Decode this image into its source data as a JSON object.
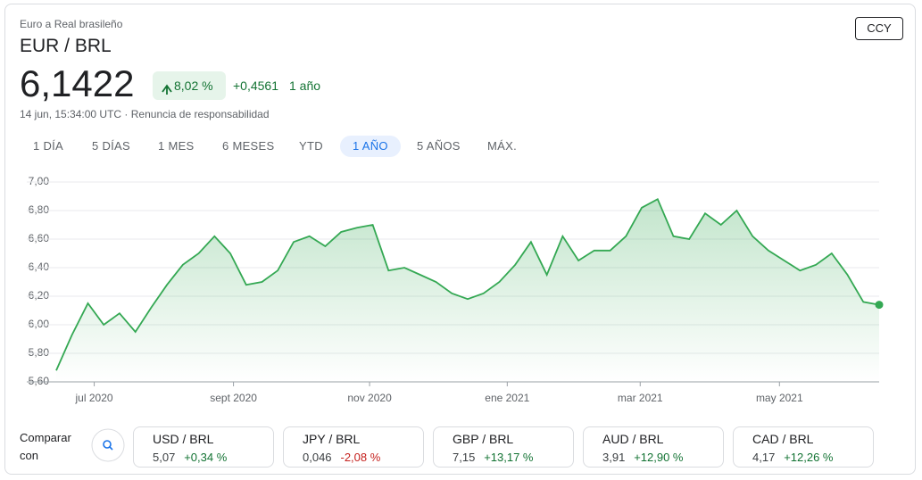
{
  "header": {
    "subtitle": "Euro a Real brasileño",
    "pair": "EUR / BRL",
    "price": "6,1422",
    "change_pct": "8,02 %",
    "change_abs": "+0,4561",
    "period": "1 año",
    "timestamp": "14 jun, 15:34:00 UTC",
    "disclaimer": "Renuncia de responsabilidad",
    "button": "CCY"
  },
  "tabs": {
    "labels": [
      "1 DÍA",
      "5 DÍAS",
      "1 MES",
      "6 MESES",
      "YTD",
      "1 AÑO",
      "5 AÑOS",
      "MÁX."
    ],
    "selected": 5
  },
  "chart_data": {
    "type": "line",
    "color": "#34a853",
    "grid": true,
    "values": [
      5.68,
      5.93,
      6.15,
      6.0,
      6.08,
      5.95,
      6.12,
      6.28,
      6.42,
      6.5,
      6.62,
      6.5,
      6.28,
      6.3,
      6.38,
      6.58,
      6.62,
      6.55,
      6.65,
      6.68,
      6.7,
      6.38,
      6.4,
      6.35,
      6.3,
      6.22,
      6.18,
      6.22,
      6.3,
      6.42,
      6.58,
      6.35,
      6.62,
      6.45,
      6.52,
      6.52,
      6.62,
      6.82,
      6.88,
      6.62,
      6.6,
      6.78,
      6.7,
      6.8,
      6.62,
      6.52,
      6.45,
      6.38,
      6.42,
      6.5,
      6.35,
      6.16,
      6.14
    ],
    "xlim": [
      0,
      52
    ],
    "ylim": [
      5.6,
      7.0
    ],
    "xticks": [
      {
        "value": 2.4,
        "label": "jul 2020"
      },
      {
        "value": 11.2,
        "label": "sept 2020"
      },
      {
        "value": 19.8,
        "label": "nov 2020"
      },
      {
        "value": 28.5,
        "label": "ene 2021"
      },
      {
        "value": 36.9,
        "label": "mar 2021"
      },
      {
        "value": 45.7,
        "label": "may 2021"
      }
    ],
    "yticks": [
      {
        "value": 5.6,
        "label": "5,60"
      },
      {
        "value": 5.8,
        "label": "5,80"
      },
      {
        "value": 6.0,
        "label": "6,00"
      },
      {
        "value": 6.2,
        "label": "6,20"
      },
      {
        "value": 6.4,
        "label": "6,40"
      },
      {
        "value": 6.6,
        "label": "6,60"
      },
      {
        "value": 6.8,
        "label": "6,80"
      },
      {
        "value": 7.0,
        "label": "7,00"
      }
    ]
  },
  "compare": {
    "label": "Comparar con",
    "cards": [
      {
        "pair": "USD / BRL",
        "price": "5,07",
        "change": "+0,34 %",
        "color": "#137333"
      },
      {
        "pair": "JPY / BRL",
        "price": "0,046",
        "change": "-2,08 %",
        "color": "#c5221f"
      },
      {
        "pair": "GBP / BRL",
        "price": "7,15",
        "change": "+13,17 %",
        "color": "#137333"
      },
      {
        "pair": "AUD / BRL",
        "price": "3,91",
        "change": "+12,90 %",
        "color": "#137333"
      },
      {
        "pair": "CAD / BRL",
        "price": "4,17",
        "change": "+12,26 %",
        "color": "#137333"
      }
    ]
  }
}
